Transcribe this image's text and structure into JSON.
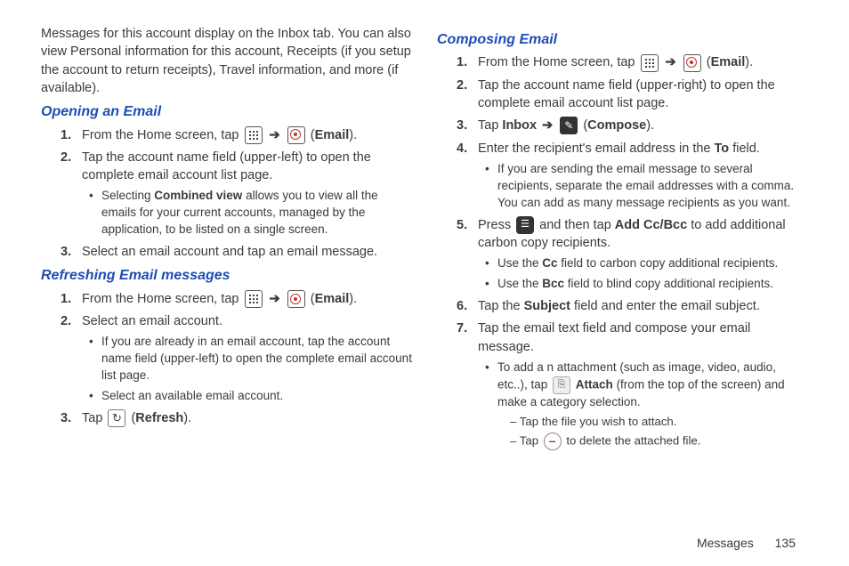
{
  "intro": "Messages for this account display on the Inbox tab. You can also view Personal information for this account, Receipts (if you setup the account to return receipts), Travel information, and more (if available).",
  "labels": {
    "email": "Email",
    "compose": "Compose",
    "refresh": "Refresh",
    "inbox": "Inbox",
    "attach": "Attach",
    "combined_view": "Combined view",
    "add_cc_bcc": "Add Cc/Bcc",
    "to": "To",
    "cc": "Cc",
    "bcc": "Bcc",
    "subject": "Subject"
  },
  "sections": {
    "opening": {
      "title": "Opening an Email",
      "step1a": "From the Home screen, tap ",
      "step2": "Tap the account name field (upper-left) to open the complete email account list page.",
      "step2_bullet_b": " allows you to view all the emails for your current accounts, managed by the application, to be listed on a single screen.",
      "step2_bullet_a": "Selecting ",
      "step3": "Select an email account and tap an email message."
    },
    "refreshing": {
      "title": "Refreshing Email messages",
      "step1a": "From the Home screen, tap ",
      "step2": "Select an email account.",
      "step2_b1": "If you are already in an email account, tap the account name field (upper-left) to open the complete email account list page.",
      "step2_b2": "Select an available email account.",
      "step3a": "Tap "
    },
    "composing": {
      "title": "Composing Email",
      "step1a": "From the Home screen, tap ",
      "step2": "Tap the account name field (upper-right) to open the complete email account list page.",
      "step3a": "Tap ",
      "step4a": "Enter the recipient's email address in the ",
      "step4b": " field.",
      "step4_bullet": "If you are sending the email message to several recipients, separate the email addresses with a comma. You can add as many message recipients as you want.",
      "step5a": "Press ",
      "step5b": " and then tap ",
      "step5c": " to add additional carbon copy recipients.",
      "step5_b1a": "Use the ",
      "step5_b1b": " field to carbon copy additional recipients.",
      "step5_b2a": "Use the ",
      "step5_b2b": " field to blind copy additional recipients.",
      "step6a": "Tap the ",
      "step6b": " field and enter the email subject.",
      "step7": "Tap the email text field and compose your email message.",
      "step7_bullet_a": "To add a n attachment (such as image, video, audio, etc..), tap ",
      "step7_bullet_b": " (from the top of the screen) and make a category selection.",
      "step7_dash1": "Tap the file you wish to attach.",
      "step7_dash2a": "Tap ",
      "step7_dash2b": " to delete the attached file."
    }
  },
  "footer": {
    "section": "Messages",
    "page": "135"
  }
}
